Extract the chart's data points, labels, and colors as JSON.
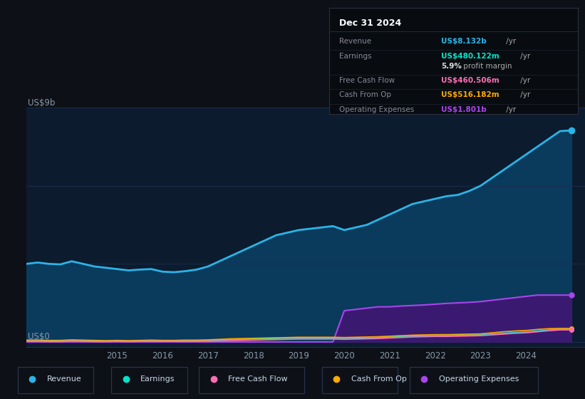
{
  "bg_color": "#0d1117",
  "plot_bg_color": "#0d1b2e",
  "grid_color": "#1e3050",
  "axis_label_color": "#8899aa",
  "years_x": [
    2013.0,
    2013.25,
    2013.5,
    2013.75,
    2014.0,
    2014.25,
    2014.5,
    2014.75,
    2015.0,
    2015.25,
    2015.5,
    2015.75,
    2016.0,
    2016.25,
    2016.5,
    2016.75,
    2017.0,
    2017.25,
    2017.5,
    2017.75,
    2018.0,
    2018.25,
    2018.5,
    2018.75,
    2019.0,
    2019.25,
    2019.5,
    2019.75,
    2020.0,
    2020.25,
    2020.5,
    2020.75,
    2021.0,
    2021.25,
    2021.5,
    2021.75,
    2022.0,
    2022.25,
    2022.5,
    2022.75,
    2023.0,
    2023.25,
    2023.5,
    2023.75,
    2024.0,
    2024.25,
    2024.5,
    2024.75,
    2025.0
  ],
  "revenue": [
    3.0,
    3.05,
    3.0,
    2.98,
    3.1,
    3.0,
    2.9,
    2.85,
    2.8,
    2.75,
    2.78,
    2.8,
    2.7,
    2.68,
    2.72,
    2.78,
    2.9,
    3.1,
    3.3,
    3.5,
    3.7,
    3.9,
    4.1,
    4.2,
    4.3,
    4.35,
    4.4,
    4.45,
    4.3,
    4.4,
    4.5,
    4.7,
    4.9,
    5.1,
    5.3,
    5.4,
    5.5,
    5.6,
    5.65,
    5.8,
    6.0,
    6.3,
    6.6,
    6.9,
    7.2,
    7.5,
    7.8,
    8.1,
    8.13
  ],
  "earnings": [
    0.05,
    0.05,
    0.04,
    0.04,
    0.06,
    0.05,
    0.04,
    0.03,
    0.04,
    0.03,
    0.04,
    0.05,
    0.04,
    0.04,
    0.05,
    0.05,
    0.06,
    0.07,
    0.09,
    0.1,
    0.11,
    0.12,
    0.13,
    0.14,
    0.14,
    0.14,
    0.14,
    0.14,
    0.13,
    0.14,
    0.15,
    0.16,
    0.18,
    0.2,
    0.22,
    0.23,
    0.24,
    0.24,
    0.25,
    0.26,
    0.27,
    0.3,
    0.33,
    0.36,
    0.38,
    0.42,
    0.46,
    0.48,
    0.48
  ],
  "free_cash_flow": [
    0.02,
    0.02,
    0.01,
    0.01,
    0.03,
    0.02,
    0.01,
    0.01,
    0.02,
    0.01,
    0.02,
    0.02,
    0.02,
    0.02,
    0.02,
    0.02,
    0.03,
    0.04,
    0.05,
    0.06,
    0.07,
    0.08,
    0.09,
    0.1,
    0.11,
    0.11,
    0.11,
    0.11,
    0.1,
    0.11,
    0.12,
    0.13,
    0.15,
    0.17,
    0.19,
    0.2,
    0.21,
    0.21,
    0.22,
    0.23,
    0.24,
    0.27,
    0.3,
    0.33,
    0.35,
    0.39,
    0.43,
    0.46,
    0.46
  ],
  "cash_from_op": [
    0.07,
    0.07,
    0.06,
    0.06,
    0.08,
    0.07,
    0.06,
    0.05,
    0.06,
    0.05,
    0.06,
    0.07,
    0.06,
    0.06,
    0.07,
    0.07,
    0.08,
    0.1,
    0.12,
    0.13,
    0.14,
    0.15,
    0.16,
    0.17,
    0.18,
    0.18,
    0.18,
    0.18,
    0.17,
    0.18,
    0.19,
    0.2,
    0.22,
    0.24,
    0.26,
    0.27,
    0.28,
    0.28,
    0.29,
    0.3,
    0.31,
    0.35,
    0.39,
    0.42,
    0.44,
    0.48,
    0.51,
    0.52,
    0.52
  ],
  "operating_expenses": [
    0.0,
    0.0,
    0.0,
    0.0,
    0.0,
    0.0,
    0.0,
    0.0,
    0.0,
    0.0,
    0.0,
    0.0,
    0.0,
    0.0,
    0.0,
    0.0,
    0.0,
    0.0,
    0.0,
    0.0,
    0.0,
    0.0,
    0.0,
    0.0,
    0.0,
    0.0,
    0.0,
    0.0,
    1.2,
    1.25,
    1.3,
    1.35,
    1.35,
    1.38,
    1.4,
    1.42,
    1.45,
    1.48,
    1.5,
    1.52,
    1.55,
    1.6,
    1.65,
    1.7,
    1.75,
    1.8,
    1.8,
    1.8,
    1.8
  ],
  "revenue_color": "#29b5e8",
  "earnings_color": "#00e5cc",
  "fcf_color": "#ff6eb4",
  "cashop_color": "#ffaa00",
  "opex_color": "#aa44ee",
  "revenue_fill_color": "#0a3a5c",
  "opex_fill_color": "#3a1a70",
  "x_ticks": [
    2015,
    2016,
    2017,
    2018,
    2019,
    2020,
    2021,
    2022,
    2023,
    2024
  ],
  "x_min": 2013.0,
  "x_max": 2025.3,
  "y_min": -0.2,
  "y_max": 9.0,
  "tooltip_title": "Dec 31 2024",
  "tooltip_title_color": "#ffffff",
  "tooltip_label_color": "#888899",
  "tooltip_bg": "#080c10",
  "tooltip_border": "#2a3040",
  "tooltip_rows": [
    {
      "label": "Revenue",
      "value": "US$8.132b /yr",
      "color": "#29b5e8"
    },
    {
      "label": "Earnings",
      "value": "US$480.122m /yr",
      "color": "#00e5cc"
    },
    {
      "label": "",
      "value": "5.9% profit margin",
      "color": "#aaaaaa"
    },
    {
      "label": "Free Cash Flow",
      "value": "US$460.506m /yr",
      "color": "#ff6eb4"
    },
    {
      "label": "Cash From Op",
      "value": "US$516.182m /yr",
      "color": "#ffaa00"
    },
    {
      "label": "Operating Expenses",
      "value": "US$1.801b /yr",
      "color": "#aa44ee"
    }
  ],
  "legend_items": [
    {
      "label": "Revenue",
      "color": "#29b5e8"
    },
    {
      "label": "Earnings",
      "color": "#00e5cc"
    },
    {
      "label": "Free Cash Flow",
      "color": "#ff6eb4"
    },
    {
      "label": "Cash From Op",
      "color": "#ffaa00"
    },
    {
      "label": "Operating Expenses",
      "color": "#aa44ee"
    }
  ]
}
